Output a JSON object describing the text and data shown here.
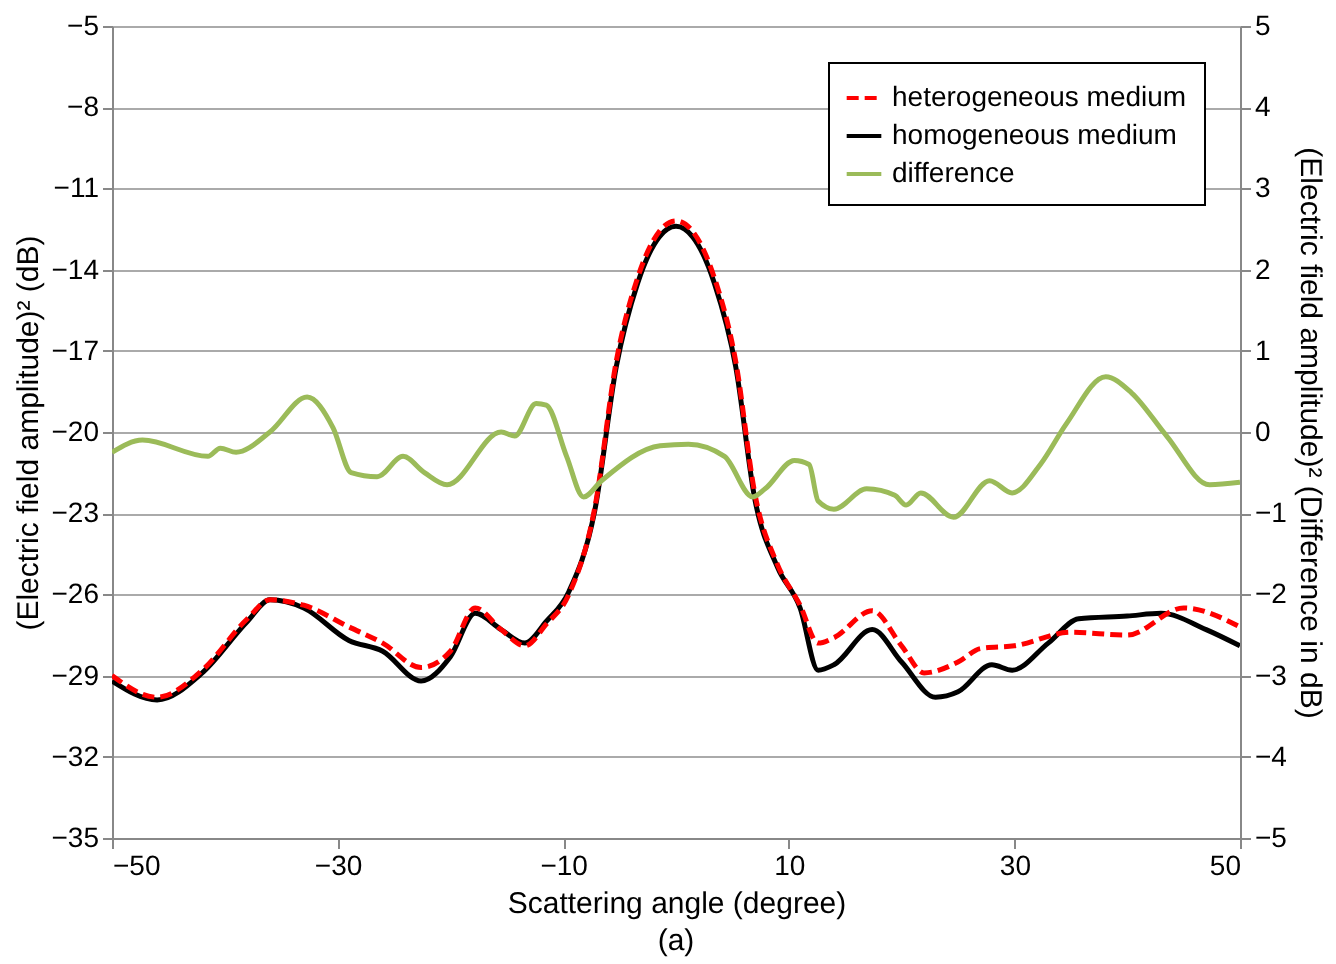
{
  "chart_data": {
    "type": "line",
    "xlabel": "Scattering angle (degree)",
    "ylabel": "(Electric field amplitude)² (dB)",
    "y2label": "(Electric field amplitude)² (Difference in dB)",
    "annotations": [
      "(a)"
    ],
    "xlim": [
      -50,
      50
    ],
    "xticks": [
      -50,
      -30,
      -10,
      10,
      30,
      50
    ],
    "ylim": [
      -35,
      -5
    ],
    "yticks": [
      -35,
      -32,
      -29,
      -26,
      -23,
      -20,
      -17,
      -14,
      -11,
      -8,
      -5
    ],
    "y2lim": [
      -5,
      5
    ],
    "y2ticks": [
      -5,
      -4,
      -3,
      -2,
      -1,
      0,
      1,
      2,
      3,
      4,
      5
    ],
    "grid": "y",
    "legend": "top right",
    "series": [
      {
        "name": "heterogeneous medium",
        "color": "#ff0000",
        "line_style": "dashed",
        "x": [
          -50,
          -46,
          -42,
          -38,
          -36,
          -33,
          -29,
          -26,
          -22.6,
          -20,
          -17.8,
          -15.5,
          -13.4,
          -11.5,
          -9.5,
          -7.2,
          -5.3,
          -3.4,
          -1.5,
          0,
          1.5,
          3.4,
          5.3,
          7,
          9,
          11,
          12.6,
          14,
          17.4,
          20,
          22,
          25,
          27,
          30,
          35,
          40,
          45,
          50
        ],
        "values": [
          -29,
          -29.8,
          -28.8,
          -26.9,
          -26.2,
          -26.4,
          -27.2,
          -27.8,
          -28.7,
          -28.1,
          -26.5,
          -27.3,
          -27.9,
          -27.1,
          -26,
          -22.8,
          -17.4,
          -14.3,
          -12.6,
          -12.2,
          -12.6,
          -14.3,
          -17.4,
          -22.3,
          -24.9,
          -26.4,
          -27.8,
          -27.6,
          -26.6,
          -27.9,
          -28.9,
          -28.5,
          -28,
          -27.9,
          -27.4,
          -27.5,
          -26.5,
          -27.2
        ]
      },
      {
        "name": "homogeneous medium",
        "color": "#000000",
        "line_style": "solid",
        "x": [
          -50,
          -46,
          -42,
          -38,
          -36,
          -33,
          -29,
          -26,
          -22.6,
          -20,
          -17.8,
          -15.5,
          -13.4,
          -11.5,
          -9.5,
          -7.2,
          -5.3,
          -3.4,
          -1.5,
          0,
          1.5,
          3.4,
          5.3,
          7,
          9,
          11,
          12.6,
          14,
          17.4,
          20,
          23,
          25,
          28,
          29.8,
          33,
          35.7,
          40,
          43,
          47,
          50
        ],
        "values": [
          -29.2,
          -29.9,
          -28.9,
          -27,
          -26.2,
          -26.5,
          -27.7,
          -28.1,
          -29.2,
          -28.3,
          -26.7,
          -27.3,
          -27.8,
          -27,
          -25.9,
          -22.9,
          -17.6,
          -14.5,
          -12.8,
          -12.4,
          -12.8,
          -14.5,
          -17.6,
          -22.5,
          -25,
          -26.5,
          -28.8,
          -28.6,
          -27.3,
          -28.5,
          -29.8,
          -29.6,
          -28.6,
          -28.8,
          -27.8,
          -26.9,
          -26.8,
          -26.7,
          -27.3,
          -27.9
        ]
      },
      {
        "name": "difference",
        "color": "#9bbb59",
        "line_style": "solid",
        "axis": "y2",
        "x": [
          -50,
          -47.3,
          -41.5,
          -40.4,
          -39,
          -36,
          -32.7,
          -30.4,
          -28.8,
          -26.5,
          -24.2,
          -22.3,
          -20.3,
          -15.5,
          -14.3,
          -12.4,
          -11.5,
          -9.7,
          -8.2,
          -6.6,
          -1.4,
          1.1,
          4.3,
          6.8,
          7.9,
          10.5,
          11.8,
          12.6,
          14,
          16.9,
          19.4,
          20.4,
          21.7,
          24.6,
          27.8,
          29.8,
          32.3,
          34.6,
          38.1,
          40.4,
          43.5,
          47.3,
          50
        ],
        "values": [
          -0.25,
          -0.1,
          -0.3,
          -0.2,
          -0.25,
          0,
          0.43,
          0.05,
          -0.5,
          -0.55,
          -0.3,
          -0.5,
          -0.65,
          0,
          -0.05,
          0.35,
          0.33,
          -0.3,
          -0.8,
          -0.6,
          -0.17,
          -0.15,
          -0.3,
          -0.8,
          -0.7,
          -0.35,
          -0.4,
          -0.85,
          -0.95,
          -0.7,
          -0.78,
          -0.9,
          -0.75,
          -1.05,
          -0.6,
          -0.75,
          -0.4,
          0.1,
          0.68,
          0.48,
          -0.05,
          -0.65,
          -0.62
        ]
      }
    ]
  }
}
